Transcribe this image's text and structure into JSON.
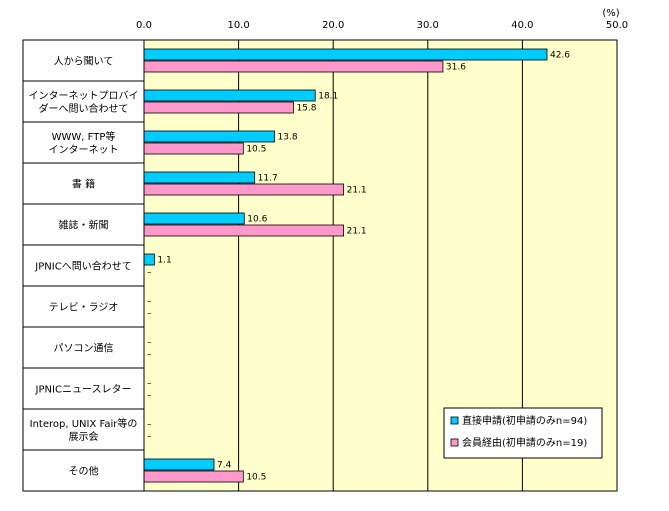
{
  "chart_data": {
    "type": "bar",
    "orientation": "horizontal",
    "unit_label": "(%)",
    "xlim": [
      0,
      50
    ],
    "ticks": [
      "0.0",
      "10.0",
      "20.0",
      "30.0",
      "40.0",
      "50.0"
    ],
    "grid": true,
    "legend_position": "bottom-right",
    "categories": [
      [
        "人から聞いて"
      ],
      [
        "インターネットプロバイ",
        "ダーへ問い合わせて"
      ],
      [
        "WWW, FTP等",
        "インターネット"
      ],
      [
        "書 籍"
      ],
      [
        "雑誌・新聞"
      ],
      [
        "JPNICへ問い合わせて"
      ],
      [
        "テレビ・ラジオ"
      ],
      [
        "パソコン通信"
      ],
      [
        "JPNICニュースレター"
      ],
      [
        "Interop, UNIX Fair等の",
        "展示会"
      ],
      [
        "その他"
      ]
    ],
    "series": [
      {
        "name": "直接申請(初申請のみn=94)",
        "color": "#00ccff",
        "values": [
          42.6,
          18.1,
          13.8,
          11.7,
          10.6,
          1.1,
          0,
          0,
          0,
          0,
          7.4
        ],
        "labels": [
          "42.6",
          "18.1",
          "13.8",
          "11.7",
          "10.6",
          "1.1",
          "–",
          "–",
          "–",
          "–",
          "7.4"
        ]
      },
      {
        "name": "会員経由(初申請のみn=19)",
        "color": "#ff99cc",
        "values": [
          31.6,
          15.8,
          10.5,
          21.1,
          21.1,
          0,
          0,
          0,
          0,
          0,
          10.5
        ],
        "labels": [
          "31.6",
          "15.8",
          "10.5",
          "21.1",
          "21.1",
          "–",
          "–",
          "–",
          "–",
          "–",
          "10.5"
        ]
      }
    ]
  }
}
